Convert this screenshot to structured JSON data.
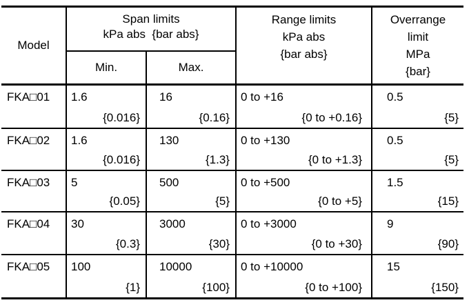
{
  "table": {
    "header": {
      "model": "Model",
      "span_title": "Span limits",
      "span_units": "kPa abs  {bar abs}",
      "min": "Min.",
      "max": "Max.",
      "range_lines": [
        "Range limits",
        "kPa abs",
        "{bar abs}"
      ],
      "overrange_lines": [
        "Overrange",
        "limit",
        "MPa",
        "{bar}"
      ]
    },
    "rows": [
      {
        "model": "FKA□01",
        "span_min": "1.6",
        "span_min_bar": "{0.016}",
        "span_max": "16",
        "span_max_bar": "{0.16}",
        "range": "0 to +16",
        "range_bar": "{0 to +0.16}",
        "overrange": "0.5",
        "overrange_bar": "{5}"
      },
      {
        "model": "FKA□02",
        "span_min": "1.6",
        "span_min_bar": "{0.016}",
        "span_max": "130",
        "span_max_bar": "{1.3}",
        "range": "0 to +130",
        "range_bar": "{0 to +1.3}",
        "overrange": "0.5",
        "overrange_bar": "{5}"
      },
      {
        "model": "FKA□03",
        "span_min": "5",
        "span_min_bar": "{0.05}",
        "span_max": "500",
        "span_max_bar": "{5}",
        "range": "0 to +500",
        "range_bar": "{0 to +5}",
        "overrange": "1.5",
        "overrange_bar": "{15}"
      },
      {
        "model": "FKA□04",
        "span_min": "30",
        "span_min_bar": "{0.3}",
        "span_max": "3000",
        "span_max_bar": "{30}",
        "range": "0 to +3000",
        "range_bar": "{0 to +30}",
        "overrange": "9",
        "overrange_bar": "{90}"
      },
      {
        "model": "FKA□05",
        "span_min": "100",
        "span_min_bar": "{1}",
        "span_max": "10000",
        "span_max_bar": "{100}",
        "range": "0 to +10000",
        "range_bar": "{0 to +100}",
        "overrange": "15",
        "overrange_bar": "{150}"
      }
    ]
  }
}
